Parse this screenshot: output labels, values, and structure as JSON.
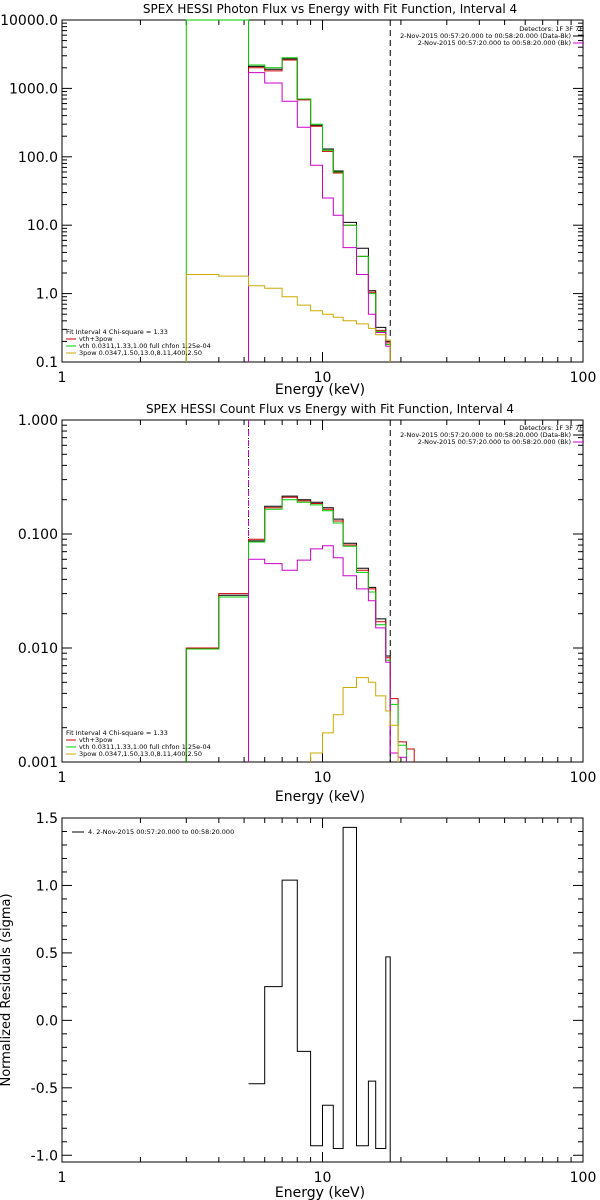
{
  "chart_data": [
    {
      "id": "photon",
      "type": "line",
      "title": "SPEX HESSI Photon Flux vs Energy with Fit Function, Interval 4",
      "xlabel": "Energy (keV)",
      "ylabel": "",
      "x_scale": "log",
      "y_scale": "log",
      "xlim": [
        1,
        100
      ],
      "ylim": [
        0.1,
        10000
      ],
      "x_ticks": [
        {
          "v": 1,
          "label": "1"
        },
        {
          "v": 10,
          "label": "10"
        },
        {
          "v": 100,
          "label": "100"
        }
      ],
      "y_ticks": [
        {
          "v": 0.1,
          "label": "0.1"
        },
        {
          "v": 1,
          "label": "1.0"
        },
        {
          "v": 10,
          "label": "10.0"
        },
        {
          "v": 100,
          "label": "100.0"
        },
        {
          "v": 1000,
          "label": "1000.0"
        },
        {
          "v": 10000,
          "label": "10000.0"
        }
      ],
      "vlines": [
        {
          "x": 5.2,
          "color": "#000000",
          "style": "dotted"
        },
        {
          "x": 5.2,
          "color": "#cc00cc",
          "style": "dashed"
        },
        {
          "x": 18.2,
          "color": "#000000",
          "style": "dashed"
        }
      ],
      "header_lines": [
        "Detectors: 1F 3F 7F",
        "2-Nov-2015 00:57:20.000 to 00:58:20.000 (Data-Bk)",
        "2-Nov-2015 00:57:20.000 to 00:58:20.000 (Bk)"
      ],
      "header_colors": [
        "",
        "#000000",
        "#cc00cc"
      ],
      "fit_legend": [
        "Fit Interval 4   Chi-square = 1.33",
        "vth+3pow",
        "vth 0.0311,1.33,1.00  full chfon 1.25e-04",
        "3pow 0.0347,1.50,13.0,8.11,400,2.50"
      ],
      "fit_legend_colors": [
        "",
        "#cc0000",
        "#00cc00",
        "#ccaa00"
      ],
      "edges": [
        3.0,
        4.0,
        5.2,
        6.0,
        7.0,
        8.0,
        9.0,
        10.0,
        11.0,
        12.0,
        13.5,
        15.0,
        16.0,
        17.5,
        18.2
      ],
      "series": [
        {
          "color": "#000000",
          "values": [
            null,
            null,
            2100,
            1900,
            2700,
            700,
            290,
            130,
            62,
            11,
            4.6,
            1.1,
            0.32,
            0.2
          ]
        },
        {
          "color": "#cc0000",
          "values": [
            null,
            null,
            2000,
            1800,
            2600,
            680,
            280,
            120,
            58,
            10,
            3.5,
            1.05,
            0.29,
            0.19
          ]
        },
        {
          "color": "#00cc00",
          "values": [
            10000,
            10000,
            2200,
            2000,
            2800,
            700,
            300,
            125,
            60,
            10,
            3.5,
            1.0,
            0.28,
            0.18
          ]
        },
        {
          "color": "#cc00cc",
          "values": [
            null,
            null,
            1700,
            1200,
            650,
            270,
            75,
            25,
            14,
            4.7,
            1.9,
            0.5,
            0.27,
            0.17
          ]
        },
        {
          "color": "#ccaa00",
          "values": [
            1.9,
            1.8,
            1.3,
            1.2,
            0.9,
            0.68,
            0.56,
            0.5,
            0.45,
            0.4,
            0.36,
            0.31,
            0.25,
            0.21
          ]
        }
      ]
    },
    {
      "id": "count",
      "type": "line",
      "title": "SPEX HESSI Count Flux vs Energy with Fit Function, Interval 4",
      "xlabel": "Energy (keV)",
      "ylabel": "",
      "x_scale": "log",
      "y_scale": "log",
      "xlim": [
        1,
        100
      ],
      "ylim": [
        0.001,
        1.0
      ],
      "x_ticks": [
        {
          "v": 1,
          "label": "1"
        },
        {
          "v": 10,
          "label": "10"
        },
        {
          "v": 100,
          "label": "100"
        }
      ],
      "y_ticks": [
        {
          "v": 0.001,
          "label": "0.001"
        },
        {
          "v": 0.01,
          "label": "0.010"
        },
        {
          "v": 0.1,
          "label": "0.100"
        },
        {
          "v": 1,
          "label": "1.000"
        }
      ],
      "vlines": [
        {
          "x": 5.2,
          "color": "#000000",
          "style": "dotted"
        },
        {
          "x": 5.2,
          "color": "#cc00cc",
          "style": "dashed"
        },
        {
          "x": 18.2,
          "color": "#000000",
          "style": "dashed"
        }
      ],
      "header_lines": [
        "Detectors: 1F 3F 7F",
        "2-Nov-2015 00:57:20.000 to 00:58:20.000 (Data-Bk)",
        "2-Nov-2015 00:57:20.000 to 00:58:20.000 (Bk)"
      ],
      "header_colors": [
        "",
        "#000000",
        "#cc00cc"
      ],
      "fit_legend": [
        "Fit Interval 4   Chi-square = 1.33",
        "vth+3pow",
        "vth 0.0311,1.33,1.00  full chfon 1.25e-04",
        "3pow 0.0347,1.50,13.0,8.11,400,2.50"
      ],
      "fit_legend_colors": [
        "",
        "#cc0000",
        "#00cc00",
        "#ccaa00"
      ],
      "edges": [
        3.0,
        4.0,
        5.2,
        6.0,
        7.0,
        8.0,
        9.0,
        10.0,
        11.0,
        12.0,
        13.5,
        15.0,
        16.0,
        17.5,
        18.2,
        19.5,
        21.0,
        22.5
      ],
      "series": [
        {
          "color": "#000000",
          "values": [
            0.0098,
            0.029,
            0.087,
            0.175,
            0.215,
            0.2,
            0.19,
            0.17,
            0.135,
            0.083,
            0.05,
            0.034,
            0.018,
            0.0085,
            null,
            null,
            null
          ]
        },
        {
          "color": "#cc0000",
          "values": [
            0.01,
            0.03,
            0.09,
            0.17,
            0.21,
            0.195,
            0.185,
            0.165,
            0.13,
            0.08,
            0.048,
            0.033,
            0.017,
            0.0082,
            0.0036,
            0.0015,
            0.0013
          ]
        },
        {
          "color": "#00cc00",
          "values": [
            0.0098,
            0.028,
            0.085,
            0.165,
            0.2,
            0.19,
            0.18,
            0.16,
            0.125,
            0.078,
            0.046,
            0.031,
            0.016,
            0.0078,
            0.0032,
            0.0014,
            null
          ]
        },
        {
          "color": "#cc00cc",
          "values": [
            null,
            null,
            0.06,
            0.055,
            0.048,
            0.059,
            0.074,
            0.079,
            0.062,
            0.043,
            0.033,
            0.026,
            0.015,
            0.0075,
            0.0012,
            0.0011,
            null
          ]
        },
        {
          "color": "#ccaa00",
          "values": [
            null,
            null,
            null,
            null,
            null,
            null,
            0.0012,
            0.0018,
            0.0026,
            0.0045,
            0.0055,
            0.005,
            0.0038,
            0.0028,
            0.0021,
            null,
            null
          ]
        }
      ]
    },
    {
      "id": "residuals",
      "type": "line",
      "title": "",
      "xlabel": "Energy (keV)",
      "ylabel": "Normalized Residuals (sigma)",
      "x_scale": "log",
      "y_scale": "linear",
      "xlim": [
        1,
        100
      ],
      "ylim": [
        -1.05,
        1.5
      ],
      "x_ticks": [
        {
          "v": 1,
          "label": "1"
        },
        {
          "v": 10,
          "label": "10"
        },
        {
          "v": 100,
          "label": "100"
        }
      ],
      "y_ticks": [
        {
          "v": -1,
          "label": "-1.0"
        },
        {
          "v": -0.5,
          "label": "-0.5"
        },
        {
          "v": 0,
          "label": "0.0"
        },
        {
          "v": 0.5,
          "label": "0.5"
        },
        {
          "v": 1,
          "label": "1.0"
        },
        {
          "v": 1.5,
          "label": "1.5"
        }
      ],
      "legend": [
        "4. 2-Nov-2015 00:57:20.000 to 00:58:20.000"
      ],
      "edges": [
        5.2,
        6.0,
        7.0,
        8.0,
        9.0,
        10.0,
        11.0,
        12.0,
        13.5,
        15.0,
        16.0,
        17.5,
        18.2
      ],
      "series": [
        {
          "color": "#000000",
          "values": [
            -0.47,
            0.25,
            1.04,
            -0.23,
            -0.93,
            -0.63,
            -0.95,
            1.43,
            -0.93,
            -0.45,
            -0.95,
            0.47
          ]
        }
      ]
    }
  ]
}
